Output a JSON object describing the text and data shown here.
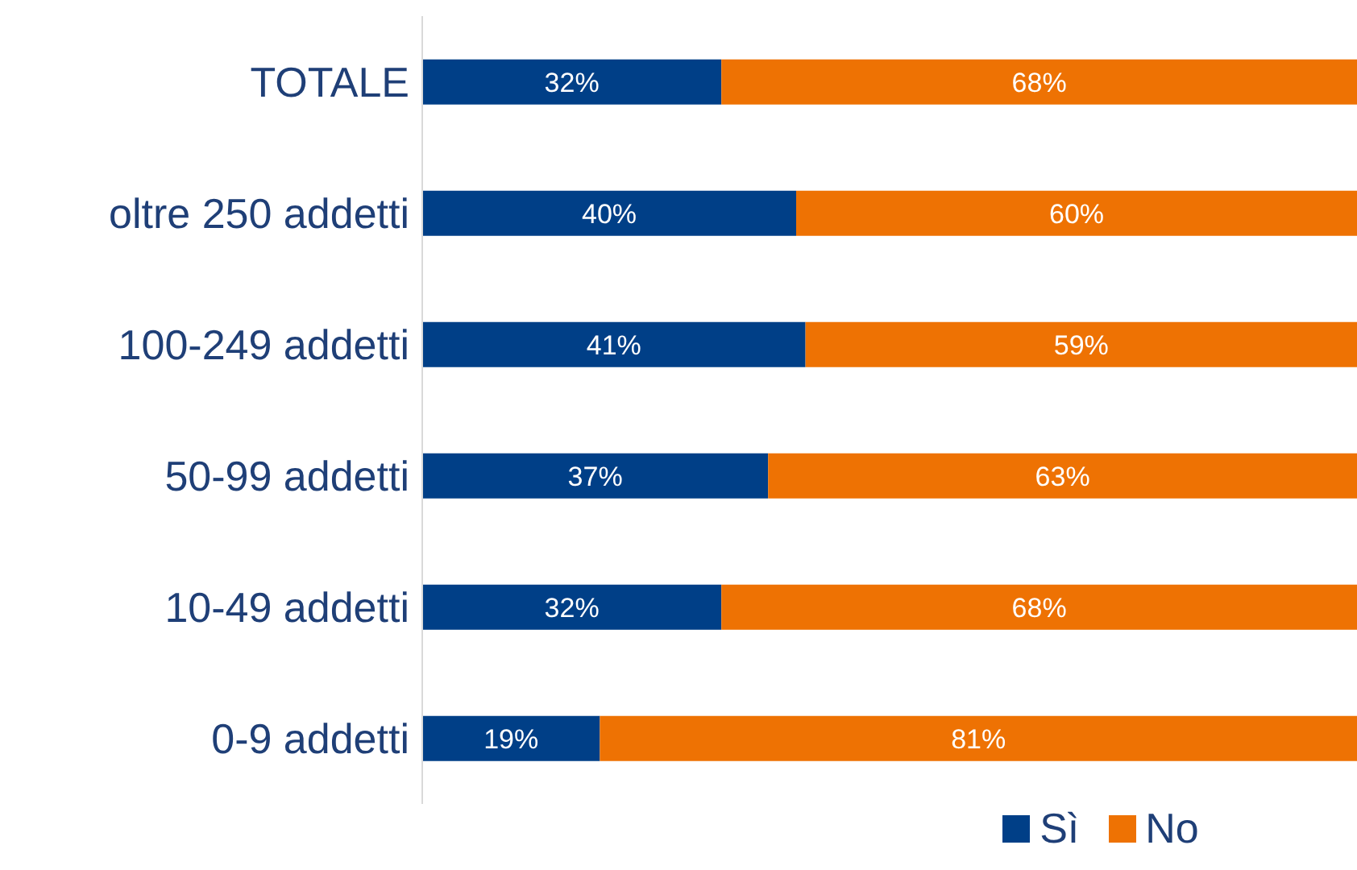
{
  "chart_data": {
    "type": "bar",
    "orientation": "horizontal",
    "stacked": true,
    "tick_labels": "y",
    "legend": "bottom",
    "categories": [
      "TOTALE",
      "oltre 250 addetti",
      "100-249 addetti",
      "50-99 addetti",
      "10-49 addetti",
      "0-9 addetti"
    ],
    "series": [
      {
        "name": "Sì",
        "color": "#003f87",
        "values": [
          32,
          40,
          41,
          37,
          32,
          19
        ],
        "value_labels": [
          "32%",
          "40%",
          "41%",
          "37%",
          "32%",
          "19%"
        ]
      },
      {
        "name": "No",
        "color": "#ee7203",
        "values": [
          68,
          60,
          59,
          63,
          68,
          81
        ],
        "value_labels": [
          "68%",
          "60%",
          "59%",
          "63%",
          "68%",
          "81%"
        ]
      }
    ]
  }
}
